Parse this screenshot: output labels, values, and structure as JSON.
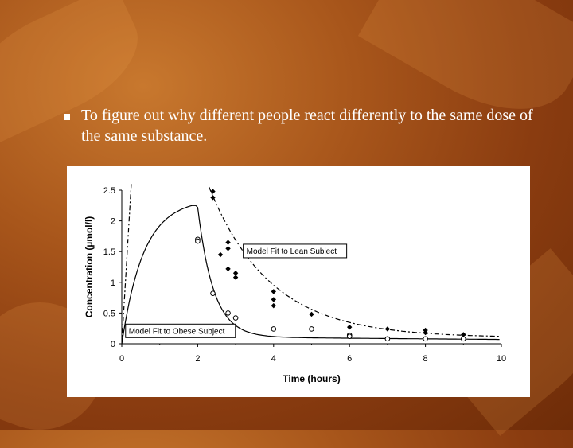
{
  "slide": {
    "bullet_text": "To figure out why different people react differently to the same dose of the same substance."
  },
  "colors": {
    "background": "#a8561b",
    "text": "#ffffff"
  },
  "chart_data": {
    "type": "scatter",
    "title": "",
    "xlabel": "Time (hours)",
    "ylabel": "Concentration (µmol/l)",
    "xlim": [
      0,
      10
    ],
    "ylim": [
      0,
      2.5
    ],
    "xticks": [
      "0",
      "2",
      "4",
      "6",
      "8",
      "10"
    ],
    "yticks": [
      "0",
      "0.5",
      "1",
      "1.5",
      "2",
      "2.5"
    ],
    "annotations": [
      "Model Fit to Lean Subject",
      "Model Fit to Obese Subject"
    ],
    "lean_points": [
      [
        2.4,
        2.38
      ],
      [
        2.4,
        2.48
      ],
      [
        2.6,
        1.45
      ],
      [
        2.8,
        1.65
      ],
      [
        2.8,
        1.55
      ],
      [
        2.8,
        1.22
      ],
      [
        3.0,
        1.15
      ],
      [
        3.0,
        1.08
      ],
      [
        4.0,
        0.85
      ],
      [
        4.0,
        0.72
      ],
      [
        4.0,
        0.62
      ],
      [
        5.0,
        0.48
      ],
      [
        6.0,
        0.27
      ],
      [
        7.0,
        0.24
      ],
      [
        8.0,
        0.22
      ],
      [
        8.0,
        0.18
      ],
      [
        9.0,
        0.15
      ]
    ],
    "obese_points": [
      [
        2.0,
        1.7
      ],
      [
        2.0,
        1.67
      ],
      [
        2.4,
        0.82
      ],
      [
        2.8,
        0.5
      ],
      [
        3.0,
        0.42
      ],
      [
        4.0,
        0.24
      ],
      [
        5.0,
        0.24
      ],
      [
        6.0,
        0.14
      ],
      [
        6.0,
        0.12
      ],
      [
        7.0,
        0.08
      ],
      [
        8.0,
        0.08
      ],
      [
        9.0,
        0.08
      ]
    ],
    "lean_fit_decay": {
      "c0": 2.55,
      "t0": 2.3,
      "k": 0.62,
      "baseline": 0.1
    },
    "obese_fit_rise": {
      "cmax": 2.25,
      "tau": 0.55
    },
    "obese_fit_decay": {
      "c0": 2.22,
      "t0": 2.0,
      "k": 2.4,
      "baseline": 0.11,
      "slope": 0.005
    }
  }
}
